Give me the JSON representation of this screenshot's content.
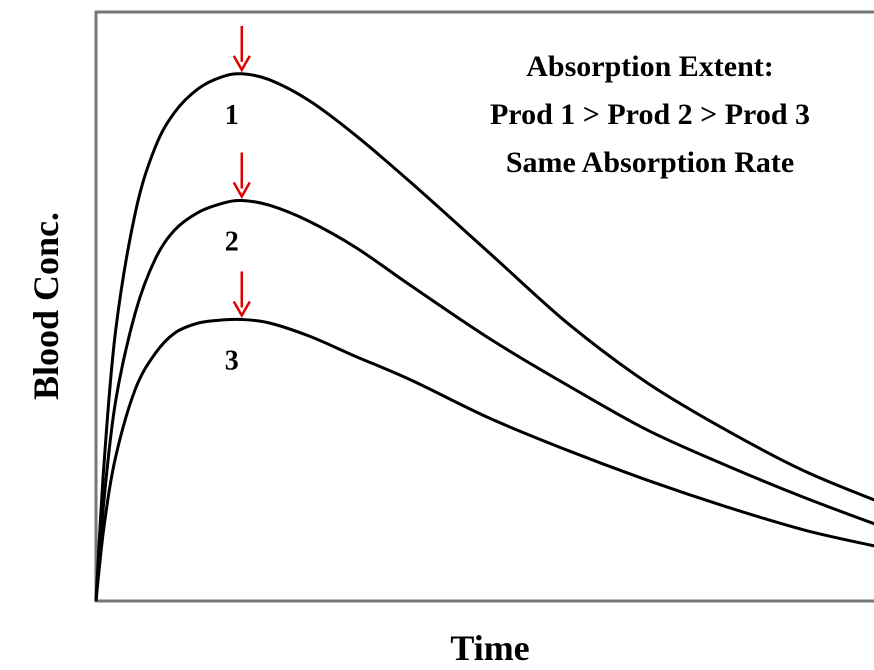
{
  "chart_data": {
    "type": "line",
    "title": "",
    "xlabel": "Time",
    "ylabel": "Blood Conc.",
    "xlim": [
      0,
      10
    ],
    "ylim": [
      0,
      10
    ],
    "grid": false,
    "ticks": false,
    "annotation": [
      "Absorption Extent:",
      "Prod 1 > Prod 2 > Prod 3",
      "Same Absorption Rate"
    ],
    "series": [
      {
        "name": "1",
        "x": [
          0,
          0.1,
          0.25,
          0.5,
          0.75,
          1.0,
          1.3,
          1.6,
          1.85,
          2.2,
          2.7,
          3.3,
          4.0,
          5.0,
          6.0,
          7.0,
          8.0,
          9.0,
          10.0
        ],
        "y": [
          0,
          2.3,
          4.6,
          6.6,
          7.7,
          8.3,
          8.7,
          8.9,
          8.95,
          8.85,
          8.5,
          7.9,
          7.1,
          5.9,
          4.7,
          3.7,
          2.9,
          2.2,
          1.65
        ]
      },
      {
        "name": "2",
        "x": [
          0,
          0.1,
          0.25,
          0.5,
          0.75,
          1.0,
          1.3,
          1.6,
          1.85,
          2.2,
          2.7,
          3.3,
          4.0,
          5.0,
          6.0,
          7.0,
          8.0,
          9.0,
          10.0
        ],
        "y": [
          0,
          1.7,
          3.4,
          4.9,
          5.8,
          6.3,
          6.6,
          6.75,
          6.8,
          6.72,
          6.45,
          6.0,
          5.35,
          4.45,
          3.65,
          2.9,
          2.3,
          1.75,
          1.25
        ]
      },
      {
        "name": "3",
        "x": [
          0,
          0.1,
          0.25,
          0.5,
          0.75,
          1.0,
          1.3,
          1.6,
          1.85,
          2.2,
          2.7,
          3.3,
          4.0,
          5.0,
          6.0,
          7.0,
          8.0,
          9.0,
          10.0
        ],
        "y": [
          0,
          1.25,
          2.45,
          3.6,
          4.2,
          4.55,
          4.72,
          4.77,
          4.78,
          4.72,
          4.5,
          4.15,
          3.75,
          3.1,
          2.55,
          2.05,
          1.6,
          1.2,
          0.9
        ]
      }
    ],
    "peak_marker_color": "#e00000",
    "line_color": "#000000"
  }
}
